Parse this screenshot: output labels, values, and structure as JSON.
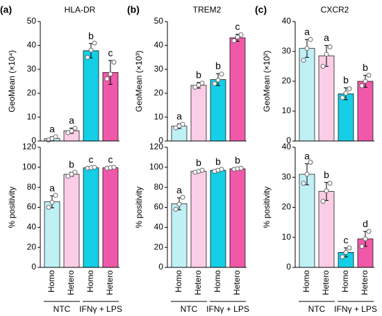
{
  "chart_data": [
    {
      "type": "bar",
      "panel": "(a)",
      "title": "HLA-DR",
      "ylabel": "GeoMean (×10⁴)",
      "categories": [
        "Homo",
        "Hetero",
        "Homo",
        "Hetero"
      ],
      "colors": [
        "#bff0f6",
        "#fccde6",
        "#14cfe6",
        "#f059a9"
      ],
      "values": [
        1.0,
        4.3,
        37.8,
        28.7
      ],
      "errors": [
        0.8,
        1.1,
        3.0,
        5.0
      ],
      "letters": [
        "a",
        "a",
        "b",
        "c"
      ],
      "points": [
        [
          0.4,
          1.0,
          1.8
        ],
        [
          3.5,
          4.2,
          5.3
        ],
        [
          35,
          38,
          41
        ],
        [
          26,
          28,
          33
        ]
      ],
      "ylim": [
        0,
        50
      ],
      "yticks": [
        0,
        10,
        20,
        30,
        40,
        50
      ]
    },
    {
      "type": "bar",
      "panel": "(b)",
      "title": "TREM2",
      "ylabel": "GeoMean (×10³)",
      "categories": [
        "Homo",
        "Hetero",
        "Homo",
        "Hetero"
      ],
      "colors": [
        "#bff0f6",
        "#fccde6",
        "#14cfe6",
        "#f059a9"
      ],
      "values": [
        6.2,
        23.3,
        25.7,
        43.2
      ],
      "errors": [
        1.0,
        1.2,
        2.5,
        1.5
      ],
      "letters": [
        "a",
        "b",
        "b",
        "c"
      ],
      "points": [
        [
          5.5,
          6.3,
          7.0
        ],
        [
          22.5,
          23.4,
          24.2
        ],
        [
          24,
          25.5,
          28
        ],
        [
          42,
          43.5,
          44.5
        ]
      ],
      "ylim": [
        0,
        50
      ],
      "yticks": [
        0,
        10,
        20,
        30,
        40,
        50
      ]
    },
    {
      "type": "bar",
      "panel": "(c)",
      "title": "CXCR2",
      "ylabel": "GeoMean (×10²)",
      "categories": [
        "Homo",
        "Hetero",
        "Homo",
        "Hetero"
      ],
      "colors": [
        "#bff0f6",
        "#fccde6",
        "#14cfe6",
        "#f059a9"
      ],
      "values": [
        31.0,
        28.5,
        15.8,
        20.0
      ],
      "errors": [
        3.0,
        3.5,
        2.0,
        2.0
      ],
      "letters": [
        "a",
        "a",
        "b",
        "b"
      ],
      "points": [
        [
          27,
          31,
          34
        ],
        [
          25,
          29,
          31.5
        ],
        [
          14.5,
          16,
          17.5
        ],
        [
          18.5,
          20,
          22
        ]
      ],
      "ylim": [
        0,
        40
      ],
      "yticks": [
        0,
        10,
        20,
        30,
        40
      ]
    },
    {
      "type": "bar",
      "ylabel": "% positivity",
      "categories": [
        "Homo",
        "Hetero",
        "Homo",
        "Hetero"
      ],
      "groups": [
        "NTC",
        "IFNγ + LPS"
      ],
      "colors": [
        "#bff0f6",
        "#fccde6",
        "#14cfe6",
        "#f059a9"
      ],
      "values": [
        65.5,
        93.0,
        99.5,
        99.5
      ],
      "errors": [
        6.0,
        2.0,
        0.5,
        0.5
      ],
      "letters": [
        "a",
        "b",
        "c",
        "c"
      ],
      "points": [
        [
          60,
          65,
          72
        ],
        [
          91,
          93,
          95
        ],
        [
          99,
          99.5,
          100
        ],
        [
          99,
          99.5,
          100
        ]
      ],
      "ylim": [
        0,
        120
      ],
      "yticks": [
        0,
        20,
        40,
        60,
        80,
        100,
        120
      ]
    },
    {
      "type": "bar",
      "ylabel": "% positivity",
      "categories": [
        "Homo",
        "Hetero",
        "Homo",
        "Hetero"
      ],
      "groups": [
        "NTC",
        "IFNγ + LPS"
      ],
      "colors": [
        "#bff0f6",
        "#fccde6",
        "#14cfe6",
        "#f059a9"
      ],
      "values": [
        63.5,
        96.0,
        97.0,
        98.5
      ],
      "errors": [
        6.0,
        1.0,
        1.0,
        1.0
      ],
      "letters": [
        "a",
        "b",
        "b",
        "b"
      ],
      "points": [
        [
          58,
          63,
          70
        ],
        [
          95,
          96,
          97
        ],
        [
          96,
          97,
          98
        ],
        [
          98,
          98.5,
          99
        ]
      ],
      "ylim": [
        0,
        120
      ],
      "yticks": [
        0,
        20,
        40,
        60,
        80,
        100,
        120
      ]
    },
    {
      "type": "bar",
      "ylabel": "% positivity",
      "categories": [
        "Homo",
        "Hetero",
        "Homo",
        "Hetero"
      ],
      "groups": [
        "NTC",
        "IFNγ + LPS"
      ],
      "colors": [
        "#bff0f6",
        "#fccde6",
        "#14cfe6",
        "#f059a9"
      ],
      "values": [
        31.0,
        25.3,
        5.0,
        9.5
      ],
      "errors": [
        3.5,
        3.0,
        1.5,
        2.5
      ],
      "letters": [
        "a",
        "b",
        "c",
        "d"
      ],
      "points": [
        [
          28,
          31,
          35
        ],
        [
          22,
          25.5,
          28
        ],
        [
          3.5,
          5,
          6.5
        ],
        [
          7,
          9.5,
          12
        ]
      ],
      "ylim": [
        0,
        40
      ],
      "yticks": [
        0,
        10,
        20,
        30,
        40
      ]
    }
  ]
}
